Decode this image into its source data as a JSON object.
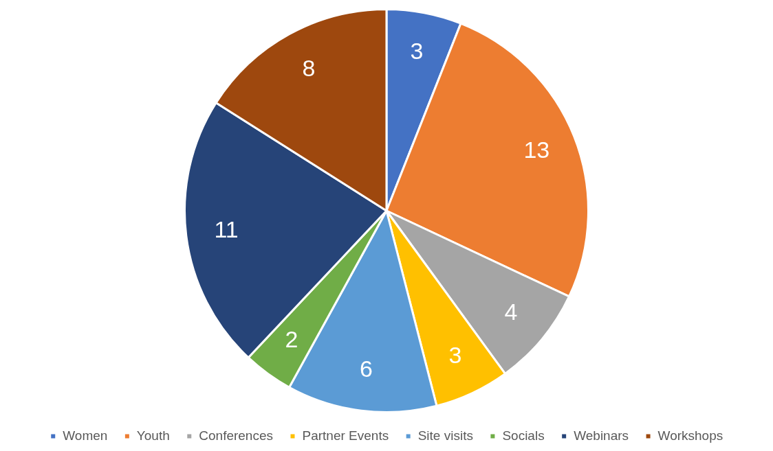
{
  "chart_data": {
    "type": "pie",
    "categories": [
      "Women",
      "Youth",
      "Conferences",
      "Partner Events",
      "Site visits",
      "Socials",
      "Webinars",
      "Workshops"
    ],
    "values": [
      3,
      13,
      4,
      3,
      6,
      2,
      11,
      8
    ],
    "colors": [
      "#4472c4",
      "#ed7d31",
      "#a5a5a5",
      "#ffc000",
      "#5b9bd5",
      "#70ad47",
      "#264478",
      "#9e480e"
    ],
    "data_labels": true,
    "legend": "bottom"
  }
}
